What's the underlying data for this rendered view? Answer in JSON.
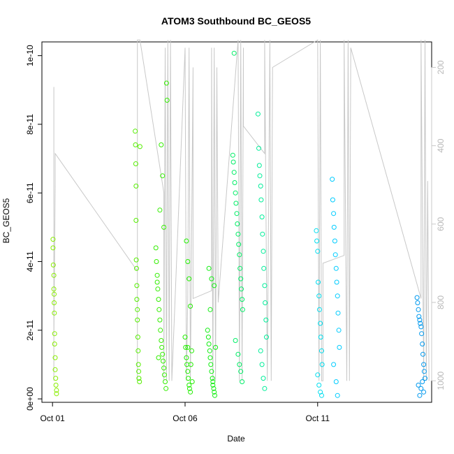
{
  "chart_data": {
    "type": "scatter",
    "title": "ATOM3 Southbound BC_GEOS5",
    "xlabel": "Date",
    "ylabel": "BC_GEOS5",
    "x_ticks": [
      "Oct 01",
      "Oct 06",
      "Oct 11"
    ],
    "x_tick_days": [
      1,
      6,
      11
    ],
    "xlim": [
      0.6,
      15.3
    ],
    "y_ticks": [
      "0e+00",
      "2e-11",
      "4e-11",
      "6e-11",
      "8e-11",
      "1e-10"
    ],
    "y_tick_values": [
      0,
      2e-11,
      4e-11,
      6e-11,
      8e-11,
      1e-10
    ],
    "ylim": [
      -1e-12,
      1.04e-10
    ],
    "y2_ticks": [
      "200",
      "400",
      "600",
      "800",
      "1000"
    ],
    "y2_tick_values": [
      200,
      400,
      600,
      800,
      1000
    ],
    "y2_lim_top_to_bottom": [
      135,
      1055
    ],
    "y2_color": "#c8c8c8",
    "grid": false,
    "legend": "none",
    "profile_line": [
      [
        1.05,
        1000
      ],
      [
        1.05,
        250
      ],
      [
        1.05,
        900
      ],
      [
        1.1,
        500
      ],
      [
        1.1,
        420
      ],
      [
        4.2,
        720
      ],
      [
        4.2,
        1000
      ],
      [
        4.2,
        130
      ],
      [
        4.3,
        130
      ],
      [
        5.2,
        520
      ],
      [
        5.2,
        1000
      ],
      [
        5.25,
        150
      ],
      [
        5.3,
        1000
      ],
      [
        5.35,
        130
      ],
      [
        5.4,
        1000
      ],
      [
        5.45,
        130
      ],
      [
        5.5,
        1000
      ],
      [
        6.0,
        150
      ],
      [
        6.05,
        1000
      ],
      [
        6.1,
        790
      ],
      [
        6.15,
        150
      ],
      [
        6.2,
        1000
      ],
      [
        6.3,
        200
      ],
      [
        6.3,
        790
      ],
      [
        7.0,
        770
      ],
      [
        7.0,
        150
      ],
      [
        7.05,
        1000
      ],
      [
        7.1,
        150
      ],
      [
        7.15,
        1000
      ],
      [
        7.2,
        200
      ],
      [
        7.25,
        800
      ],
      [
        8.0,
        130
      ],
      [
        8.05,
        1000
      ],
      [
        8.1,
        130
      ],
      [
        8.15,
        1000
      ],
      [
        8.2,
        150
      ],
      [
        8.2,
        350
      ],
      [
        9.0,
        420
      ],
      [
        9.0,
        130
      ],
      [
        9.1,
        1000
      ],
      [
        9.2,
        130
      ],
      [
        9.25,
        1000
      ],
      [
        9.3,
        200
      ],
      [
        11.0,
        130
      ],
      [
        11.05,
        1000
      ],
      [
        11.1,
        130
      ],
      [
        11.15,
        1000
      ],
      [
        11.2,
        1000
      ],
      [
        11.2,
        700
      ],
      [
        12.0,
        680
      ],
      [
        12.0,
        130
      ],
      [
        12.1,
        1000
      ],
      [
        12.15,
        130
      ],
      [
        12.2,
        1000
      ],
      [
        12.25,
        150
      ],
      [
        14.9,
        790
      ],
      [
        14.9,
        130
      ],
      [
        15.0,
        1000
      ],
      [
        15.05,
        130
      ],
      [
        15.1,
        1000
      ],
      [
        15.15,
        490
      ],
      [
        15.2,
        1000
      ]
    ],
    "series": [
      {
        "color": "#88ee00",
        "x": [
          1.02,
          1.02,
          1.03,
          1.05,
          1.05,
          1.06,
          1.06,
          1.07,
          1.08,
          1.08,
          1.1,
          1.1,
          1.12,
          1.13,
          1.15,
          1.15
        ],
        "y": [
          4.65e-11,
          4.4e-11,
          3.9e-11,
          3.6e-11,
          3.2e-11,
          3.05e-11,
          2.8e-11,
          2.5e-11,
          1.9e-11,
          1.6e-11,
          1.2e-11,
          8.5e-12,
          6e-12,
          4e-12,
          2.5e-12,
          1.5e-12
        ]
      },
      {
        "color": "#55ee00",
        "x": [
          4.12,
          4.13,
          4.14,
          4.15,
          4.15,
          4.16,
          4.17,
          4.18,
          4.18,
          4.2,
          4.2,
          4.22,
          4.23,
          4.24,
          4.25,
          4.26,
          4.28,
          4.3
        ],
        "y": [
          7.8e-11,
          7.4e-11,
          6.85e-11,
          6.2e-11,
          5.2e-11,
          4.05e-11,
          3.8e-11,
          3.3e-11,
          2.9e-11,
          2.6e-11,
          2.3e-11,
          1.8e-11,
          1.4e-11,
          1e-11,
          8e-12,
          6e-12,
          5e-12,
          7.35e-11
        ]
      },
      {
        "color": "#33ee00",
        "x": [
          4.9,
          4.92,
          4.95,
          4.97,
          5.0,
          5.02,
          5.05,
          5.07,
          5.1,
          5.12,
          5.15,
          5.17,
          5.2,
          5.22,
          5.25,
          5.28,
          5.3,
          5.32,
          5.1,
          5.15,
          5.05,
          5.2,
          4.95,
          5.0
        ],
        "y": [
          4.4e-11,
          4e-11,
          3.6e-11,
          3.2e-11,
          2.9e-11,
          2.6e-11,
          2.3e-11,
          2e-11,
          1.7e-11,
          1.5e-11,
          1.3e-11,
          1.1e-11,
          9e-12,
          7e-12,
          5e-12,
          3e-12,
          9.2e-11,
          8.7e-11,
          7.4e-11,
          6.5e-11,
          5.5e-11,
          5e-11,
          3.4e-11,
          1.2e-11
        ]
      },
      {
        "color": "#22ee00",
        "x": [
          6.0,
          6.02,
          6.05,
          6.07,
          6.1,
          6.12,
          6.15,
          6.17,
          6.2,
          6.22,
          6.25,
          6.27,
          6.05,
          6.1,
          6.15,
          6.2,
          6.1
        ],
        "y": [
          1.8e-11,
          1.5e-11,
          1.2e-11,
          1e-11,
          8e-12,
          6e-12,
          4e-12,
          3e-12,
          2e-12,
          1e-11,
          1.4e-11,
          5e-12,
          4.6e-11,
          4e-11,
          3.5e-11,
          2.7e-11,
          1.5e-11
        ]
      },
      {
        "color": "#11ee11",
        "x": [
          6.85,
          6.88,
          6.9,
          6.93,
          6.95,
          6.97,
          7.0,
          7.03,
          7.05,
          7.08,
          7.1,
          7.12,
          7.15,
          6.9,
          7.0,
          7.1,
          6.95,
          7.05
        ],
        "y": [
          2e-11,
          1.8e-11,
          1.6e-11,
          1.4e-11,
          1.2e-11,
          1e-11,
          8e-12,
          6e-12,
          4e-12,
          3e-12,
          2e-12,
          1e-12,
          1.5e-11,
          3.8e-11,
          3.5e-11,
          3.3e-11,
          2.6e-11,
          5e-12
        ]
      },
      {
        "color": "#00ee66",
        "x": [
          7.8,
          7.82,
          7.85,
          7.87,
          7.9,
          7.92,
          7.95,
          7.97,
          8.0,
          8.02,
          8.05,
          8.07,
          8.1,
          8.12,
          8.15,
          8.17,
          7.9,
          8.0,
          8.05,
          7.85,
          8.1,
          8.15
        ],
        "y": [
          7.1e-11,
          6.9e-11,
          6.6e-11,
          6.3e-11,
          6e-11,
          5.7e-11,
          5.4e-11,
          5.1e-11,
          4.8e-11,
          4.5e-11,
          4.2e-11,
          3.8e-11,
          3.5e-11,
          3.2e-11,
          2.9e-11,
          2.6e-11,
          1.7e-11,
          1.3e-11,
          1e-11,
          1.007e-10,
          8e-12,
          5e-12
        ]
      },
      {
        "color": "#00ee99",
        "x": [
          8.75,
          8.78,
          8.8,
          8.82,
          8.85,
          8.87,
          8.9,
          8.92,
          8.95,
          8.97,
          9.0,
          9.02,
          9.05,
          9.07,
          8.85,
          8.9,
          8.95,
          9.0
        ],
        "y": [
          8.3e-11,
          7.3e-11,
          6.8e-11,
          6.5e-11,
          6.2e-11,
          5.8e-11,
          5.3e-11,
          4.8e-11,
          4.3e-11,
          3.8e-11,
          3.3e-11,
          2.8e-11,
          2.3e-11,
          1.8e-11,
          1.4e-11,
          1e-11,
          6e-12,
          3e-12
        ]
      },
      {
        "color": "#00ddee",
        "x": [
          10.95,
          10.97,
          11.0,
          11.02,
          11.05,
          11.07,
          11.1,
          11.12,
          11.15,
          11.17,
          11.0,
          11.05,
          11.1,
          11.15
        ],
        "y": [
          4.9e-11,
          4.6e-11,
          4.3e-11,
          3.4e-11,
          3e-11,
          2.6e-11,
          2.2e-11,
          1.8e-11,
          1.4e-11,
          1e-11,
          7e-12,
          4e-12,
          2e-12,
          1e-12
        ]
      },
      {
        "color": "#00ccff",
        "x": [
          11.55,
          11.57,
          11.6,
          11.62,
          11.65,
          11.67,
          11.7,
          11.72,
          11.75,
          11.77,
          11.8,
          11.82,
          11.6,
          11.7,
          11.75
        ],
        "y": [
          6.4e-11,
          5.8e-11,
          5.4e-11,
          5e-11,
          4.6e-11,
          4.2e-11,
          3.8e-11,
          3.4e-11,
          3e-11,
          2.5e-11,
          2e-11,
          1.5e-11,
          1e-11,
          5e-12,
          1e-12
        ]
      },
      {
        "color": "#0099ee",
        "x": [
          14.75,
          14.77,
          14.8,
          14.82,
          14.85,
          14.87,
          14.9,
          14.92,
          14.95,
          14.97,
          15.0,
          15.02,
          15.05,
          14.8,
          14.9,
          15.0,
          14.85,
          14.95
        ],
        "y": [
          2.95e-11,
          2.8e-11,
          2.6e-11,
          2.4e-11,
          2.3e-11,
          2.2e-11,
          2.1e-11,
          1.9e-11,
          1.6e-11,
          1.3e-11,
          1e-11,
          8e-12,
          6e-12,
          4e-12,
          3e-12,
          2e-12,
          1e-12,
          5e-12
        ]
      }
    ]
  }
}
